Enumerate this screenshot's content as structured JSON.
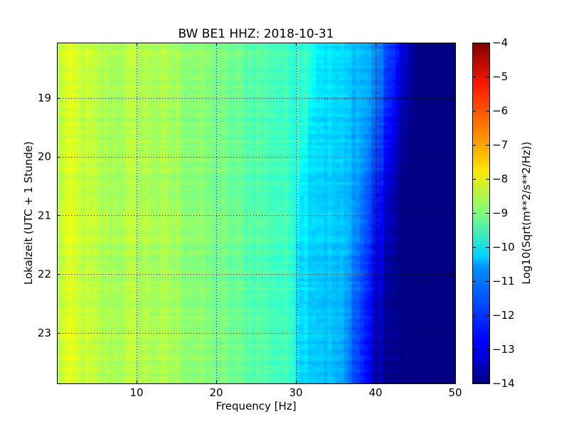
{
  "chart_data": {
    "type": "heatmap",
    "title": "BW BE1 HHZ: 2018-10-31",
    "xlabel": "Frequency [Hz]",
    "ylabel": "Lokalzeit (UTC + 1 Stunde)",
    "xlim": [
      0,
      50
    ],
    "ylim": [
      23.86,
      18.06
    ],
    "x_ticks": [
      10,
      20,
      30,
      40,
      50
    ],
    "y_ticks": [
      19,
      20,
      21,
      22,
      23
    ],
    "grid": true,
    "colormap": "jet",
    "colorbar": {
      "label": "Log10(Sqrt(m**2/s**2/Hz))",
      "range": [
        -14,
        -4
      ],
      "ticks": [
        -4,
        -5,
        -6,
        -7,
        -8,
        -9,
        -10,
        -11,
        -12,
        -13,
        -14
      ]
    },
    "frequency_profile": {
      "frequency_hz": [
        0,
        1,
        3,
        6,
        10,
        15,
        20,
        25,
        28,
        30,
        31,
        33,
        35,
        37,
        38,
        39,
        40,
        41,
        42,
        43,
        44,
        50
      ],
      "log10_amplitude": [
        -8.6,
        -8.1,
        -8.3,
        -8.6,
        -8.5,
        -8.7,
        -9.1,
        -9.4,
        -9.6,
        -9.8,
        -10.4,
        -10.6,
        -10.8,
        -11.0,
        -11.3,
        -11.8,
        -12.3,
        -12.8,
        -13.4,
        -13.8,
        -14.0,
        -14.0
      ]
    },
    "cutoff_drift": {
      "time_hours": [
        18.06,
        19.0,
        20.0,
        21.0,
        22.0,
        23.0,
        23.86
      ],
      "shift_hz": [
        2.0,
        1.5,
        0.5,
        -0.5,
        -1.0,
        -1.8,
        -2.0
      ]
    },
    "notes_visible": "spectrogram; amplitude is roughly constant over time, with horizontal striping"
  },
  "colors": {
    "grid": "#000000",
    "axes": "#000000",
    "background": "#ffffff"
  }
}
